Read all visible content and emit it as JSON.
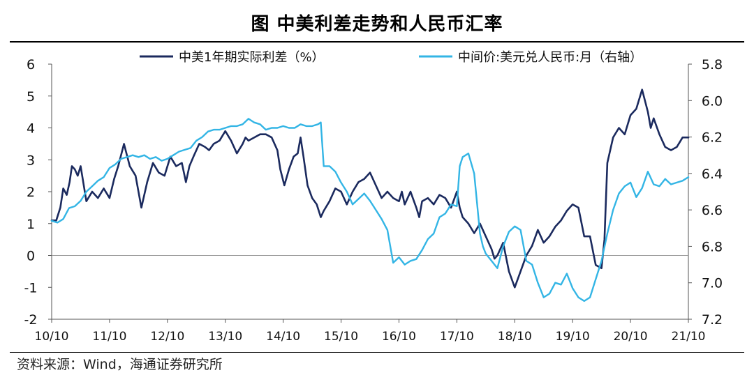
{
  "title": "图  中美利差走势和人民币汇率",
  "source": "资料来源：Wind，海通证券研究所",
  "colors": {
    "series1": "#1B2A5E",
    "series2": "#33B5E5",
    "axis": "#555555",
    "zero": "#9A9A9A"
  },
  "chart_data": {
    "type": "line",
    "x_ticks": [
      "10/10",
      "11/10",
      "12/10",
      "13/10",
      "14/10",
      "15/10",
      "16/10",
      "17/10",
      "18/10",
      "19/10",
      "20/10",
      "21/10"
    ],
    "x_range": [
      0,
      11
    ],
    "y_left": {
      "min": -2,
      "max": 6,
      "ticks": [
        -2,
        -1,
        0,
        1,
        2,
        3,
        4,
        5,
        6
      ]
    },
    "y_right": {
      "min": 5.8,
      "max": 7.2,
      "inverted": true,
      "ticks": [
        "5.8",
        "6.0",
        "6.2",
        "6.4",
        "6.6",
        "6.8",
        "7.0",
        "7.2"
      ]
    },
    "legend": {
      "placement": "top",
      "items": [
        "中美1年期实际利差（%）",
        "中间价:美元兑人民币:月（右轴）"
      ]
    },
    "series": [
      {
        "name": "中美1年期实际利差（%）",
        "axis": "left",
        "x": [
          0,
          0.08,
          0.15,
          0.2,
          0.26,
          0.31,
          0.35,
          0.4,
          0.45,
          0.5,
          0.6,
          0.7,
          0.8,
          0.9,
          1.0,
          1.08,
          1.15,
          1.25,
          1.35,
          1.45,
          1.55,
          1.65,
          1.75,
          1.85,
          1.95,
          2.05,
          2.15,
          2.25,
          2.32,
          2.38,
          2.45,
          2.55,
          2.65,
          2.72,
          2.8,
          2.9,
          3.0,
          3.1,
          3.2,
          3.3,
          3.35,
          3.4,
          3.5,
          3.6,
          3.7,
          3.8,
          3.9,
          3.95,
          4.02,
          4.1,
          4.18,
          4.25,
          4.3,
          4.35,
          4.42,
          4.5,
          4.58,
          4.65,
          4.7,
          4.8,
          4.9,
          5.0,
          5.1,
          5.2,
          5.3,
          5.4,
          5.5,
          5.6,
          5.7,
          5.8,
          5.9,
          6.0,
          6.05,
          6.1,
          6.2,
          6.3,
          6.35,
          6.4,
          6.5,
          6.6,
          6.7,
          6.8,
          6.9,
          7.0,
          7.05,
          7.1,
          7.2,
          7.3,
          7.4,
          7.5,
          7.6,
          7.65,
          7.7,
          7.8,
          7.9,
          8.0,
          8.1,
          8.2,
          8.3,
          8.4,
          8.5,
          8.6,
          8.7,
          8.8,
          8.9,
          9.0,
          9.1,
          9.2,
          9.3,
          9.4,
          9.5,
          9.55,
          9.6,
          9.7,
          9.8,
          9.9,
          10.0,
          10.1,
          10.2,
          10.3,
          10.35,
          10.4,
          10.5,
          10.6,
          10.7,
          10.8,
          10.9,
          11.0
        ],
        "values": [
          1.1,
          1.1,
          1.5,
          2.1,
          1.9,
          2.3,
          2.8,
          2.7,
          2.5,
          2.8,
          1.7,
          2.0,
          1.8,
          2.1,
          1.8,
          2.4,
          2.8,
          3.5,
          2.8,
          2.5,
          1.5,
          2.3,
          2.9,
          2.6,
          2.5,
          3.1,
          2.8,
          2.9,
          2.3,
          2.8,
          3.1,
          3.5,
          3.4,
          3.3,
          3.5,
          3.6,
          3.9,
          3.6,
          3.2,
          3.5,
          3.7,
          3.6,
          3.7,
          3.8,
          3.8,
          3.7,
          3.3,
          2.7,
          2.2,
          2.7,
          3.1,
          3.2,
          3.7,
          3.1,
          2.2,
          1.8,
          1.6,
          1.2,
          1.4,
          1.7,
          2.1,
          2.0,
          1.6,
          2.0,
          2.3,
          2.4,
          2.6,
          2.2,
          1.8,
          2.0,
          1.8,
          1.7,
          2.0,
          1.6,
          2.0,
          1.5,
          1.2,
          1.7,
          1.8,
          1.6,
          1.9,
          1.8,
          1.5,
          2.0,
          1.5,
          1.2,
          1.0,
          0.7,
          1.0,
          0.6,
          0.2,
          -0.1,
          0.0,
          0.4,
          -0.5,
          -1.0,
          -0.5,
          0.0,
          0.3,
          0.8,
          0.4,
          0.6,
          0.9,
          1.1,
          1.4,
          1.6,
          1.5,
          0.6,
          0.6,
          -0.3,
          -0.4,
          0.5,
          2.9,
          3.7,
          4.0,
          3.8,
          4.4,
          4.6,
          5.2,
          4.5,
          4.0,
          4.3,
          3.8,
          3.4,
          3.3,
          3.4,
          3.7,
          3.7
        ]
      },
      {
        "name": "中间价:美元兑人民币:月（右轴）",
        "axis": "right",
        "x": [
          0,
          0.1,
          0.2,
          0.3,
          0.4,
          0.5,
          0.6,
          0.7,
          0.8,
          0.9,
          1.0,
          1.1,
          1.2,
          1.3,
          1.4,
          1.5,
          1.6,
          1.7,
          1.8,
          1.9,
          2.0,
          2.1,
          2.2,
          2.3,
          2.4,
          2.5,
          2.6,
          2.7,
          2.8,
          2.9,
          3.0,
          3.1,
          3.2,
          3.3,
          3.4,
          3.5,
          3.6,
          3.7,
          3.8,
          3.9,
          4.0,
          4.1,
          4.2,
          4.3,
          4.4,
          4.5,
          4.6,
          4.65,
          4.7,
          4.8,
          4.9,
          5.0,
          5.1,
          5.2,
          5.3,
          5.4,
          5.5,
          5.6,
          5.7,
          5.8,
          5.9,
          6.0,
          6.1,
          6.2,
          6.3,
          6.4,
          6.5,
          6.6,
          6.7,
          6.8,
          6.9,
          7.0,
          7.05,
          7.1,
          7.2,
          7.3,
          7.4,
          7.45,
          7.5,
          7.6,
          7.7,
          7.8,
          7.9,
          8.0,
          8.1,
          8.2,
          8.3,
          8.4,
          8.5,
          8.6,
          8.7,
          8.8,
          8.9,
          9.0,
          9.1,
          9.2,
          9.3,
          9.4,
          9.5,
          9.6,
          9.7,
          9.8,
          9.9,
          10.0,
          10.1,
          10.2,
          10.3,
          10.4,
          10.5,
          10.6,
          10.7,
          10.8,
          10.9,
          11.0
        ],
        "values": [
          6.66,
          6.67,
          6.65,
          6.59,
          6.58,
          6.55,
          6.5,
          6.47,
          6.44,
          6.42,
          6.37,
          6.35,
          6.32,
          6.31,
          6.3,
          6.31,
          6.3,
          6.32,
          6.31,
          6.33,
          6.32,
          6.3,
          6.28,
          6.27,
          6.26,
          6.22,
          6.2,
          6.17,
          6.16,
          6.16,
          6.15,
          6.14,
          6.14,
          6.13,
          6.1,
          6.12,
          6.13,
          6.16,
          6.15,
          6.15,
          6.14,
          6.15,
          6.15,
          6.13,
          6.14,
          6.14,
          6.13,
          6.12,
          6.36,
          6.36,
          6.39,
          6.45,
          6.5,
          6.57,
          6.54,
          6.51,
          6.55,
          6.6,
          6.65,
          6.71,
          6.89,
          6.86,
          6.9,
          6.88,
          6.87,
          6.82,
          6.76,
          6.73,
          6.64,
          6.62,
          6.57,
          6.58,
          6.36,
          6.31,
          6.29,
          6.4,
          6.73,
          6.8,
          6.84,
          6.88,
          6.92,
          6.8,
          6.72,
          6.69,
          6.71,
          6.88,
          6.9,
          7.0,
          7.08,
          7.06,
          7.0,
          7.01,
          6.95,
          7.03,
          7.08,
          7.1,
          7.08,
          6.98,
          6.88,
          6.73,
          6.6,
          6.51,
          6.47,
          6.45,
          6.53,
          6.48,
          6.39,
          6.46,
          6.47,
          6.43,
          6.46,
          6.45,
          6.44,
          6.42
        ]
      }
    ]
  }
}
